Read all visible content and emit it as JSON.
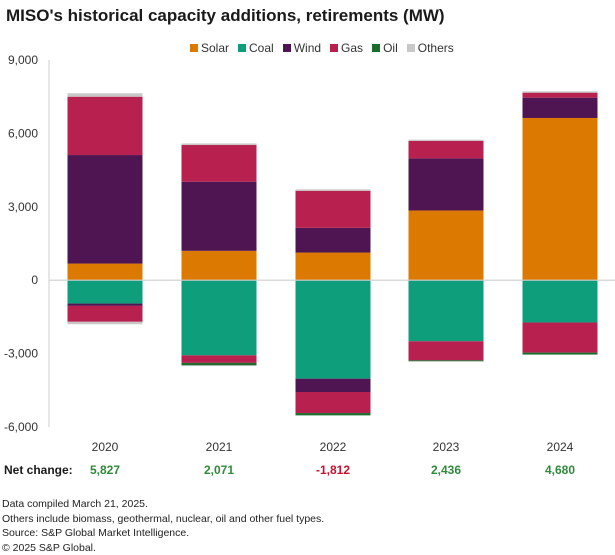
{
  "chart_data": {
    "type": "bar",
    "stacked": true,
    "title": "MISO's historical capacity additions, retirements (MW)",
    "categories": [
      "2020",
      "2021",
      "2022",
      "2023",
      "2024"
    ],
    "ylim": [
      -6000,
      9000
    ],
    "yticks": [
      9000,
      6000,
      3000,
      0,
      -3000,
      -6000
    ],
    "ytick_labels": [
      "9,000",
      "6,000",
      "3,000",
      "0",
      "-3,000",
      "-6,000"
    ],
    "legend_position": "top",
    "series": [
      {
        "name": "Solar",
        "color": "#DB7900",
        "additions": [
          680,
          1200,
          1130,
          2850,
          6630
        ],
        "retirements": [
          0,
          0,
          0,
          0,
          0
        ]
      },
      {
        "name": "Coal",
        "color": "#0F9E7B",
        "additions": [
          0,
          0,
          0,
          0,
          0
        ],
        "retirements": [
          -955,
          -3070,
          -4025,
          -2495,
          -1730
        ]
      },
      {
        "name": "Wind",
        "color": "#4F1552",
        "additions": [
          4435,
          2825,
          1010,
          2130,
          830
        ],
        "retirements": [
          -95,
          0,
          -545,
          0,
          0
        ]
      },
      {
        "name": "Gas",
        "color": "#B8204F",
        "additions": [
          2385,
          1500,
          1515,
          710,
          205
        ],
        "retirements": [
          -650,
          -310,
          -860,
          -780,
          -1230
        ]
      },
      {
        "name": "Oil",
        "color": "#1E6B2E",
        "additions": [
          0,
          0,
          0,
          0,
          0
        ],
        "retirements": [
          0,
          -100,
          -95,
          -40,
          -80
        ]
      },
      {
        "name": "Others",
        "color": "#C8C8C8",
        "additions": [
          140,
          65,
          60,
          55,
          55
        ],
        "retirements": [
          -100,
          -30,
          0,
          0,
          0
        ]
      }
    ],
    "net_change_label": "Net change:",
    "net_change": [
      5827,
      2071,
      -1812,
      2436,
      4680
    ],
    "net_change_labels": [
      "5,827",
      "2,071",
      "-1,812",
      "2,436",
      "4,680"
    ],
    "net_colors": {
      "positive": "#2E8B3A",
      "negative": "#C8102E"
    }
  },
  "notes": [
    "Data compiled March 21, 2025.",
    "Others include biomass, geothermal, nuclear, oil and other fuel types.",
    "Source: S&P Global Market Intelligence.",
    "© 2025 S&P Global."
  ]
}
